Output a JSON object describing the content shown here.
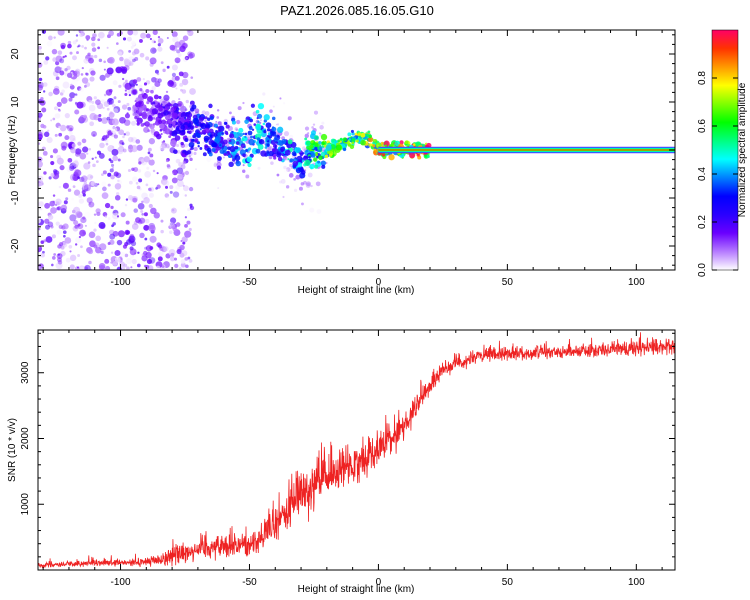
{
  "figure_title": "PAZ1.2026.085.16.05.G10",
  "colorbar": {
    "label": "Normalized spectral amplitude",
    "ticks": [
      "0.0",
      "0.2",
      "0.4",
      "0.6",
      "0.8"
    ],
    "tick_values": [
      0.0,
      0.2,
      0.4,
      0.6,
      0.8
    ],
    "range": [
      0,
      1
    ],
    "colormap": [
      "#ffffff",
      "#b57bff",
      "#6a00ff",
      "#2a00ff",
      "#0000ff",
      "#0080ff",
      "#00ffff",
      "#00ff80",
      "#00ff00",
      "#80ff00",
      "#ffff00",
      "#ff9900",
      "#ff3300",
      "#ff0066"
    ]
  },
  "chart_data": [
    {
      "type": "heatmap",
      "title": "PAZ1.2026.085.16.05.G10",
      "xlabel": "Height of straight line (km)",
      "ylabel": "Frequency (Hz)",
      "xlim": [
        -132,
        115
      ],
      "ylim": [
        -25,
        25
      ],
      "xticks": [
        -100,
        -50,
        0,
        50,
        100
      ],
      "xtick_labels": [
        "-100",
        "-50",
        "0",
        "50",
        "100"
      ],
      "yticks": [
        -20,
        -10,
        0,
        10,
        20
      ],
      "ytick_labels": [
        "-20",
        "-10",
        "0",
        "10",
        "20"
      ],
      "ridge": {
        "description": "dominant frequency ridge (Hz) vs height (km)",
        "x": [
          -90,
          -80,
          -70,
          -60,
          -50,
          -45,
          -40,
          -35,
          -30,
          -25,
          -20,
          -15,
          -10,
          -5,
          0,
          5,
          10,
          20,
          50,
          115
        ],
        "freq": [
          9,
          6,
          4,
          2,
          2,
          4,
          1,
          0,
          -3,
          0,
          0,
          1,
          2,
          3,
          0,
          0,
          0,
          0,
          0,
          0
        ],
        "amplitude": [
          0.15,
          0.2,
          0.3,
          0.35,
          0.45,
          0.45,
          0.3,
          0.45,
          0.4,
          0.6,
          0.65,
          0.65,
          0.65,
          0.7,
          0.8,
          0.85,
          0.9,
          0.95,
          0.95,
          0.95
        ],
        "band_start_x": 0,
        "band_freq": 0
      },
      "scatter_region": {
        "x": [
          -132,
          -80
        ],
        "freq": [
          -25,
          25
        ],
        "amplitude_max": 0.2
      }
    },
    {
      "type": "line",
      "xlabel": "Height of straight line (km)",
      "ylabel": "SNR (10 * v/v)",
      "xlim": [
        -132,
        115
      ],
      "ylim": [
        0,
        3650
      ],
      "xticks": [
        -100,
        -50,
        0,
        50,
        100
      ],
      "xtick_labels": [
        "-100",
        "-50",
        "0",
        "50",
        "100"
      ],
      "yticks": [
        1000,
        2000,
        3000
      ],
      "ytick_labels": [
        "1000",
        "2000",
        "3000"
      ],
      "series": [
        {
          "name": "SNR",
          "color": "#ee2222",
          "x": [
            -132,
            -110,
            -95,
            -85,
            -78,
            -70,
            -60,
            -50,
            -45,
            -40,
            -35,
            -30,
            -25,
            -20,
            -15,
            -10,
            -5,
            0,
            5,
            10,
            15,
            20,
            25,
            30,
            40,
            50,
            60,
            70,
            80,
            90,
            100,
            110,
            115
          ],
          "y": [
            80,
            100,
            110,
            150,
            250,
            330,
            370,
            380,
            500,
            700,
            900,
            1200,
            1300,
            1400,
            1500,
            1600,
            1700,
            1850,
            2000,
            2200,
            2500,
            2800,
            3050,
            3150,
            3250,
            3300,
            3300,
            3320,
            3340,
            3350,
            3380,
            3390,
            3400
          ],
          "noise": [
            60,
            60,
            70,
            120,
            220,
            250,
            240,
            240,
            280,
            380,
            450,
            500,
            500,
            450,
            400,
            380,
            350,
            350,
            300,
            250,
            200,
            180,
            150,
            150,
            140,
            130,
            130,
            130,
            130,
            140,
            140,
            150,
            150
          ]
        }
      ]
    }
  ]
}
